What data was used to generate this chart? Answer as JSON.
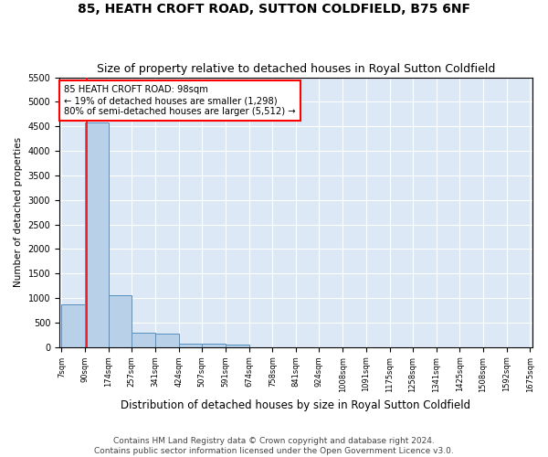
{
  "title_line1": "85, HEATH CROFT ROAD, SUTTON COLDFIELD, B75 6NF",
  "title_line2": "Size of property relative to detached houses in Royal Sutton Coldfield",
  "xlabel": "Distribution of detached houses by size in Royal Sutton Coldfield",
  "ylabel": "Number of detached properties",
  "footer_line1": "Contains HM Land Registry data © Crown copyright and database right 2024.",
  "footer_line2": "Contains public sector information licensed under the Open Government Licence v3.0.",
  "bin_edges": [
    7,
    90,
    174,
    257,
    341,
    424,
    507,
    591,
    674,
    758,
    841,
    924,
    1008,
    1091,
    1175,
    1258,
    1341,
    1425,
    1508,
    1592,
    1675
  ],
  "bar_heights": [
    880,
    4580,
    1060,
    290,
    285,
    80,
    75,
    50,
    0,
    0,
    0,
    0,
    0,
    0,
    0,
    0,
    0,
    0,
    0,
    0
  ],
  "bar_color": "#b8d0e8",
  "bar_edge_color": "#5590c0",
  "property_size": 98,
  "property_line_color": "red",
  "ylim": [
    0,
    5500
  ],
  "yticks": [
    0,
    500,
    1000,
    1500,
    2000,
    2500,
    3000,
    3500,
    4000,
    4500,
    5000,
    5500
  ],
  "annotation_text": "85 HEATH CROFT ROAD: 98sqm\n← 19% of detached houses are smaller (1,298)\n80% of semi-detached houses are larger (5,512) →",
  "annotation_box_color": "red",
  "bg_color": "#dce8f5",
  "grid_color": "#ffffff",
  "title_fontsize": 10,
  "subtitle_fontsize": 9,
  "footer_fontsize": 6.5
}
